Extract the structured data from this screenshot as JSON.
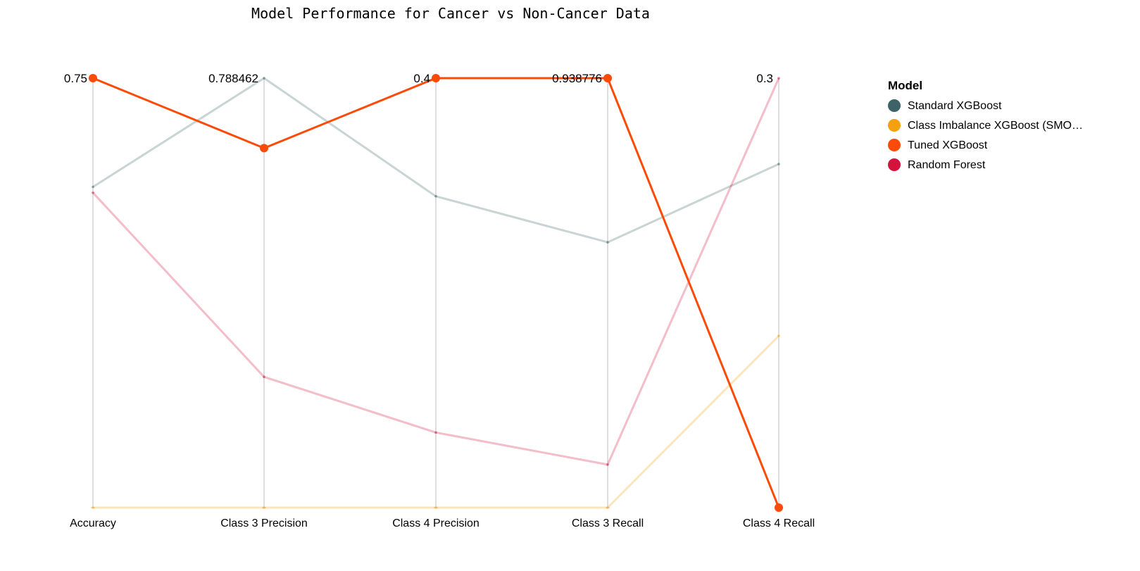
{
  "chart_data": {
    "type": "parallel-coordinates",
    "title": "Model Performance for Cancer vs Non-Cancer Data",
    "axes": [
      "Accuracy",
      "Class 3 Precision",
      "Class 4 Precision",
      "Class 3 Recall",
      "Class 4 Recall"
    ],
    "axis_max_labels": [
      "0.75",
      "0.788462",
      "0.4",
      "0.938776",
      "0.3"
    ],
    "axis_max": [
      0.75,
      0.788462,
      0.4,
      0.938776,
      0.3
    ],
    "axis_min": [
      0,
      0,
      0,
      0,
      0
    ],
    "highlighted_series": "Tuned XGBoost",
    "legend": {
      "title": "Model",
      "position": "top-right",
      "items": [
        {
          "name": "Standard XGBoost",
          "display": "Standard XGBoost",
          "color": "#3d6369"
        },
        {
          "name": "Class Imbalance XGBoost (SMOTE)",
          "display": "Class Imbalance XGBoost (SMO…",
          "color": "#f5a00f"
        },
        {
          "name": "Tuned XGBoost",
          "display": "Tuned XGBoost",
          "color": "#fc4b08"
        },
        {
          "name": "Random Forest",
          "display": "Random Forest",
          "color": "#d4133c"
        }
      ]
    },
    "series": [
      {
        "name": "Standard XGBoost",
        "values": [
          0.56,
          0.788462,
          0.29,
          0.58,
          0.24
        ]
      },
      {
        "name": "Class Imbalance XGBoost (SMOTE)",
        "values": [
          0,
          0,
          0,
          0,
          0.12
        ]
      },
      {
        "name": "Random Forest",
        "values": [
          0.55,
          0.24,
          0.07,
          0.094,
          0.3
        ]
      },
      {
        "name": "Tuned XGBoost",
        "values": [
          0.75,
          0.66,
          0.4,
          0.938776,
          0
        ]
      }
    ]
  }
}
